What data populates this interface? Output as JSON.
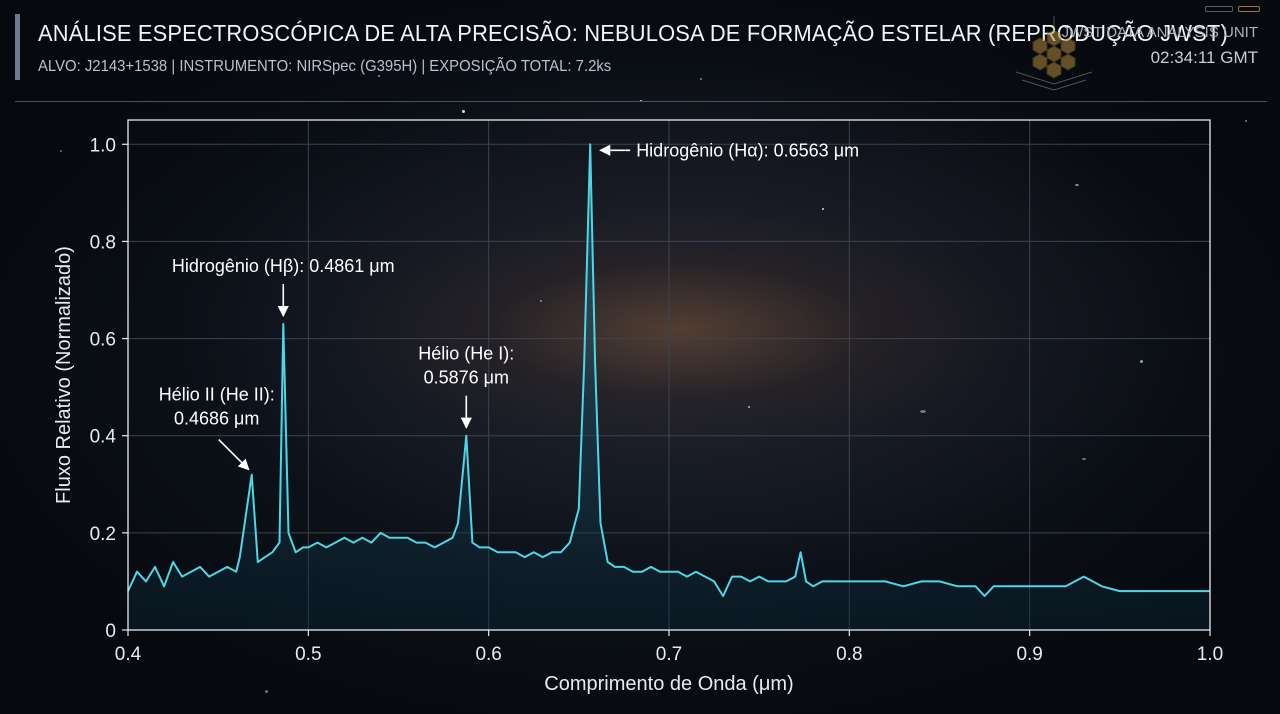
{
  "header": {
    "title": "ANÁLISE ESPECTROSCÓPICA DE ALTA PRECISÃO: NEBULOSA DE FORMAÇÃO ESTELAR (REPRODUÇÃO JWST)",
    "subtitle": "ALVO: J2143+1538 | INSTRUMENTO: NIRSpec (G395H) | EXPOSIÇÃO TOTAL: 7.2ks",
    "unit_label": "JWST DATA ANALYSIS UNIT",
    "clock": "02:34:11 GMT",
    "logo_icon": "jwst-mirror-logo-icon"
  },
  "colors": {
    "line": "#4fd6e6",
    "fill_top": "#1f6f8a",
    "grid": "#3a4450",
    "axis": "#e6ebf0",
    "accent": "#6b7c8f"
  },
  "chart_data": {
    "type": "line",
    "title": "",
    "xlabel": "Comprimento de Onda (μm)",
    "ylabel": "Fluxo Relativo (Normalizado)",
    "xlim": [
      0.4,
      1.0
    ],
    "ylim": [
      0,
      1.05
    ],
    "x_ticks": [
      0.4,
      0.5,
      0.6,
      0.7,
      0.8,
      0.9,
      1.0
    ],
    "x_tick_labels": [
      "0.4",
      "0.5",
      "0.6",
      "0.7",
      "0.8",
      "0.9",
      "1.0"
    ],
    "y_ticks": [
      0,
      0.2,
      0.4,
      0.6,
      0.8,
      1.0
    ],
    "y_tick_labels": [
      "0",
      "0.2",
      "0.4",
      "0.6",
      "0.8",
      "1.0"
    ],
    "grid": true,
    "series": [
      {
        "x": [
          0.4,
          0.405,
          0.41,
          0.415,
          0.42,
          0.425,
          0.43,
          0.435,
          0.44,
          0.445,
          0.45,
          0.455,
          0.46,
          0.462,
          0.4686,
          0.472,
          0.476,
          0.48,
          0.484,
          0.4861,
          0.489,
          0.493,
          0.497,
          0.5,
          0.505,
          0.51,
          0.515,
          0.52,
          0.525,
          0.53,
          0.535,
          0.54,
          0.545,
          0.55,
          0.555,
          0.56,
          0.565,
          0.57,
          0.575,
          0.58,
          0.583,
          0.5876,
          0.591,
          0.595,
          0.6,
          0.605,
          0.61,
          0.615,
          0.62,
          0.625,
          0.63,
          0.635,
          0.64,
          0.645,
          0.65,
          0.653,
          0.6563,
          0.659,
          0.662,
          0.666,
          0.67,
          0.675,
          0.68,
          0.685,
          0.69,
          0.695,
          0.7,
          0.705,
          0.71,
          0.715,
          0.72,
          0.725,
          0.73,
          0.735,
          0.74,
          0.745,
          0.75,
          0.755,
          0.76,
          0.765,
          0.77,
          0.773,
          0.776,
          0.78,
          0.785,
          0.79,
          0.795,
          0.8,
          0.81,
          0.82,
          0.83,
          0.84,
          0.85,
          0.86,
          0.87,
          0.875,
          0.88,
          0.89,
          0.9,
          0.91,
          0.92,
          0.93,
          0.935,
          0.94,
          0.95,
          0.96,
          0.97,
          0.98,
          0.99,
          1.0
        ],
        "y": [
          0.08,
          0.12,
          0.1,
          0.13,
          0.09,
          0.14,
          0.11,
          0.12,
          0.13,
          0.11,
          0.12,
          0.13,
          0.12,
          0.15,
          0.32,
          0.14,
          0.15,
          0.16,
          0.18,
          0.63,
          0.2,
          0.16,
          0.17,
          0.17,
          0.18,
          0.17,
          0.18,
          0.19,
          0.18,
          0.19,
          0.18,
          0.2,
          0.19,
          0.19,
          0.19,
          0.18,
          0.18,
          0.17,
          0.18,
          0.19,
          0.22,
          0.4,
          0.18,
          0.17,
          0.17,
          0.16,
          0.16,
          0.16,
          0.15,
          0.16,
          0.15,
          0.16,
          0.16,
          0.18,
          0.25,
          0.55,
          1.0,
          0.55,
          0.22,
          0.14,
          0.13,
          0.13,
          0.12,
          0.12,
          0.13,
          0.12,
          0.12,
          0.12,
          0.11,
          0.12,
          0.11,
          0.1,
          0.07,
          0.11,
          0.11,
          0.1,
          0.11,
          0.1,
          0.1,
          0.1,
          0.11,
          0.16,
          0.1,
          0.09,
          0.1,
          0.1,
          0.1,
          0.1,
          0.1,
          0.1,
          0.09,
          0.1,
          0.1,
          0.09,
          0.09,
          0.07,
          0.09,
          0.09,
          0.09,
          0.09,
          0.09,
          0.11,
          0.1,
          0.09,
          0.08,
          0.08,
          0.08,
          0.08,
          0.08,
          0.08
        ]
      }
    ],
    "annotations": [
      {
        "lines": [
          "Hidrogênio (Hα): 0.6563 μm"
        ],
        "x": 0.6563,
        "y": 1.0,
        "arrow": "from-right"
      },
      {
        "lines": [
          "Hidrogênio (Hβ): 0.4861 μm"
        ],
        "x": 0.4861,
        "y": 0.63,
        "arrow": "from-above"
      },
      {
        "lines": [
          "Hélio (He I):",
          "0.5876 μm"
        ],
        "x": 0.5876,
        "y": 0.4,
        "arrow": "from-above"
      },
      {
        "lines": [
          "Hélio II (He II):",
          "0.4686 μm"
        ],
        "x": 0.4686,
        "y": 0.32,
        "arrow": "from-upper-left"
      }
    ]
  }
}
